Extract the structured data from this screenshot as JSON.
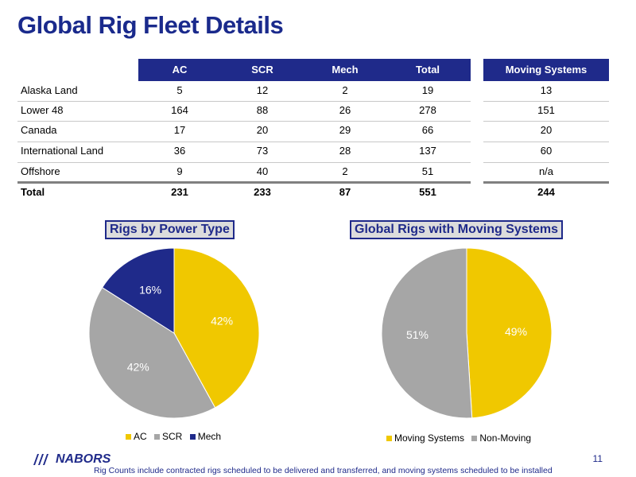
{
  "title": "Global Rig Fleet Details",
  "table": {
    "headers": [
      "AC",
      "SCR",
      "Mech",
      "Total"
    ],
    "moving_header": "Moving Systems",
    "rows": [
      {
        "label": "Alaska Land",
        "ac": "5",
        "scr": "12",
        "mech": "2",
        "total": "19",
        "moving": "13"
      },
      {
        "label": "Lower 48",
        "ac": "164",
        "scr": "88",
        "mech": "26",
        "total": "278",
        "moving": "151"
      },
      {
        "label": "Canada",
        "ac": "17",
        "scr": "20",
        "mech": "29",
        "total": "66",
        "moving": "20"
      },
      {
        "label": "International Land",
        "ac": "36",
        "scr": "73",
        "mech": "28",
        "total": "137",
        "moving": "60"
      },
      {
        "label": "Offshore",
        "ac": "9",
        "scr": "40",
        "mech": "2",
        "total": "51",
        "moving": "n/a"
      }
    ],
    "total": {
      "label": "Total",
      "ac": "231",
      "scr": "233",
      "mech": "87",
      "total": "551",
      "moving": "244"
    }
  },
  "chart_data": [
    {
      "type": "pie",
      "title": "Rigs by Power Type",
      "categories": [
        "AC",
        "SCR",
        "Mech"
      ],
      "values": [
        42,
        42,
        16
      ],
      "labels": [
        "42%",
        "42%",
        "16%"
      ],
      "colors": [
        "#f0c800",
        "#a6a6a6",
        "#1f2a8a"
      ],
      "legend": "bottom"
    },
    {
      "type": "pie",
      "title": "Global Rigs with Moving Systems",
      "categories": [
        "Moving Systems",
        "Non-Moving"
      ],
      "values": [
        49,
        51
      ],
      "labels": [
        "49%",
        "51%"
      ],
      "colors": [
        "#f0c800",
        "#a6a6a6"
      ],
      "legend": "bottom"
    }
  ],
  "footer": {
    "logo_text": "NABORS",
    "page_number": "11",
    "note": "Rig Counts include contracted rigs scheduled to be delivered and transferred, and moving systems scheduled to be installed"
  }
}
